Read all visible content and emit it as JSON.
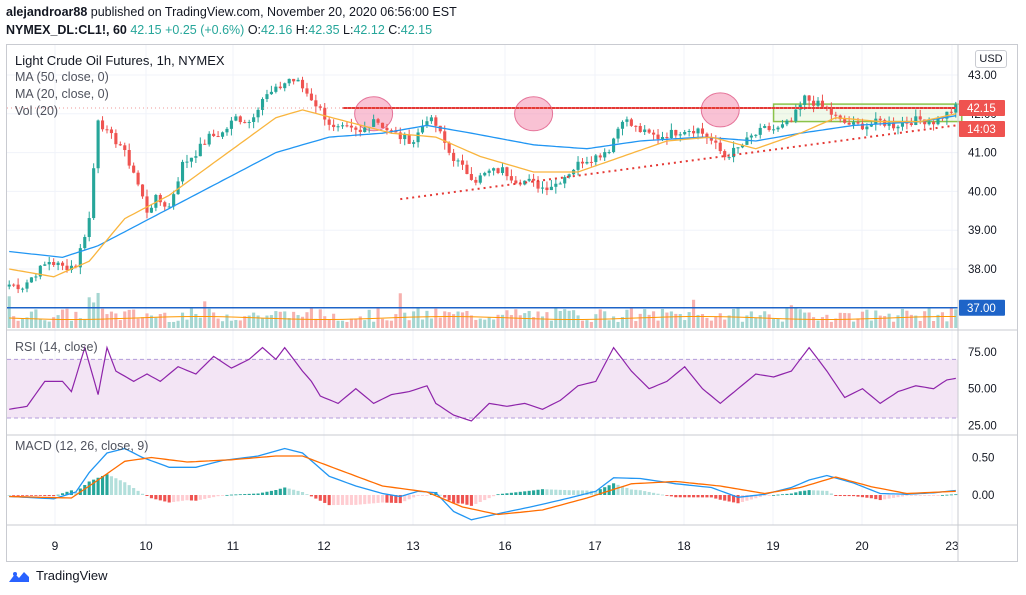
{
  "header": {
    "line1_user": "alejandroar88",
    "line1_rest": " published on TradingView.com, November 20, 2020 06:56:00 EST",
    "symbol": "NYMEX_DL:CL1!, 60",
    "last": "42.15",
    "change": "+0.25 (+0.6%)",
    "o_label": "O:",
    "o": "42.16",
    "h_label": "H:",
    "h": "42.35",
    "l_label": "L:",
    "l": "42.12",
    "c_label": "C:",
    "c": "42.15"
  },
  "legend": {
    "title": "Light Crude Oil Futures, 1h, NYMEX",
    "ma50": "MA (50, close, 0)",
    "ma20": "MA (20, close, 0)",
    "vol": "Vol (20)",
    "rsi": "RSI (14, close)",
    "macd": "MACD (12, 26, close, 9)"
  },
  "currency": "USD",
  "price_axis": {
    "ticks": [
      "43.00",
      "42.00",
      "41.00",
      "40.00",
      "39.00",
      "38.00"
    ],
    "last_label": "42.15",
    "countdown": "14:03",
    "level_label": "37.00"
  },
  "rsi_axis": {
    "ticks": [
      "75.00",
      "50.00",
      "25.00"
    ]
  },
  "macd_axis": {
    "ticks": [
      "0.50",
      "0.00"
    ]
  },
  "time_axis": {
    "ticks": [
      "9",
      "10",
      "11",
      "12",
      "13",
      "16",
      "17",
      "18",
      "19",
      "20",
      "23"
    ]
  },
  "footer": {
    "brand": "TradingView"
  },
  "colors": {
    "up": "#26a69a",
    "down": "#ef5350",
    "ma50": "#2196f3",
    "ma20": "#f9b53e",
    "rsi": "#8e24aa",
    "rsi_band": "#f3e5f5",
    "level": "#1e64c8",
    "resistance": "#e53935",
    "box": "#8bc34a",
    "circle": "#f48fb1"
  },
  "chart_data": [
    {
      "type": "candlestick",
      "title": "Light Crude Oil Futures, 1h, NYMEX",
      "x_ticks": [
        "9",
        "10",
        "11",
        "12",
        "13",
        "16",
        "17",
        "18",
        "19",
        "20",
        "23"
      ],
      "ylim": [
        37.0,
        43.3
      ],
      "y_ticks": [
        43,
        42,
        41,
        40,
        39,
        38
      ],
      "path_anchors": [
        [
          0,
          37.6
        ],
        [
          3,
          37.55
        ],
        [
          6,
          37.9
        ],
        [
          9,
          38.2
        ],
        [
          12,
          38.05
        ],
        [
          15,
          38.1
        ],
        [
          18,
          39.3
        ],
        [
          20,
          41.9
        ],
        [
          22,
          41.5
        ],
        [
          25,
          41.2
        ],
        [
          28,
          40.5
        ],
        [
          31,
          39.5
        ],
        [
          33,
          39.8
        ],
        [
          36,
          39.6
        ],
        [
          39,
          40.7
        ],
        [
          42,
          41.0
        ],
        [
          45,
          41.4
        ],
        [
          48,
          41.5
        ],
        [
          51,
          41.9
        ],
        [
          54,
          41.8
        ],
        [
          57,
          42.4
        ],
        [
          60,
          42.6
        ],
        [
          63,
          42.9
        ],
        [
          65,
          42.8
        ],
        [
          68,
          42.4
        ],
        [
          70,
          42.1
        ],
        [
          73,
          41.6
        ],
        [
          76,
          41.6
        ],
        [
          79,
          41.5
        ],
        [
          82,
          41.9
        ],
        [
          85,
          41.6
        ],
        [
          88,
          41.4
        ],
        [
          91,
          41.3
        ],
        [
          94,
          41.9
        ],
        [
          96,
          41.7
        ],
        [
          99,
          41.0
        ],
        [
          102,
          40.6
        ],
        [
          105,
          40.3
        ],
        [
          108,
          40.5
        ],
        [
          111,
          40.55
        ],
        [
          114,
          40.3
        ],
        [
          117,
          40.25
        ],
        [
          120,
          40.1
        ],
        [
          123,
          40.2
        ],
        [
          126,
          40.5
        ],
        [
          129,
          40.8
        ],
        [
          132,
          40.9
        ],
        [
          135,
          41.1
        ],
        [
          138,
          41.9
        ],
        [
          140,
          41.7
        ],
        [
          143,
          41.5
        ],
        [
          146,
          41.4
        ],
        [
          149,
          41.5
        ],
        [
          152,
          41.6
        ],
        [
          155,
          41.6
        ],
        [
          158,
          41.3
        ],
        [
          161,
          40.9
        ],
        [
          164,
          41.1
        ],
        [
          167,
          41.4
        ],
        [
          170,
          41.6
        ],
        [
          173,
          41.6
        ],
        [
          176,
          41.8
        ],
        [
          179,
          42.4
        ],
        [
          181,
          42.3
        ],
        [
          184,
          42.1
        ],
        [
          187,
          41.8
        ],
        [
          190,
          41.7
        ],
        [
          193,
          41.7
        ],
        [
          196,
          41.8
        ],
        [
          199,
          41.7
        ],
        [
          202,
          41.8
        ],
        [
          205,
          41.85
        ],
        [
          208,
          41.8
        ],
        [
          211,
          42.0
        ],
        [
          213,
          42.15
        ]
      ],
      "series": [
        {
          "name": "MA (50, close, 0)",
          "anchors": [
            [
              0,
              38.45
            ],
            [
              12,
              38.3
            ],
            [
              20,
              38.6
            ],
            [
              30,
              39.2
            ],
            [
              45,
              40.1
            ],
            [
              60,
              41.0
            ],
            [
              72,
              41.4
            ],
            [
              84,
              41.5
            ],
            [
              94,
              41.7
            ],
            [
              104,
              41.5
            ],
            [
              118,
              41.2
            ],
            [
              130,
              41.1
            ],
            [
              142,
              41.3
            ],
            [
              156,
              41.4
            ],
            [
              168,
              41.3
            ],
            [
              178,
              41.5
            ],
            [
              190,
              41.7
            ],
            [
              205,
              41.8
            ],
            [
              213,
              41.95
            ]
          ]
        },
        {
          "name": "MA (20, close, 0)",
          "anchors": [
            [
              0,
              38.0
            ],
            [
              10,
              37.8
            ],
            [
              18,
              38.2
            ],
            [
              26,
              39.3
            ],
            [
              36,
              39.9
            ],
            [
              48,
              40.9
            ],
            [
              60,
              41.9
            ],
            [
              66,
              42.1
            ],
            [
              76,
              41.8
            ],
            [
              86,
              41.5
            ],
            [
              96,
              41.4
            ],
            [
              106,
              40.9
            ],
            [
              118,
              40.5
            ],
            [
              128,
              40.5
            ],
            [
              138,
              40.9
            ],
            [
              148,
              41.3
            ],
            [
              158,
              41.4
            ],
            [
              168,
              41.1
            ],
            [
              178,
              41.5
            ],
            [
              186,
              41.9
            ],
            [
              196,
              41.8
            ],
            [
              205,
              41.8
            ],
            [
              213,
              42.0
            ]
          ]
        }
      ],
      "annotations": {
        "horizontal_level": 37.0,
        "resistance": [
          [
            75,
            42.15
          ],
          [
            213,
            42.15
          ]
        ],
        "rising_trendline": [
          [
            88,
            39.8
          ],
          [
            213,
            41.7
          ]
        ]
      }
    },
    {
      "type": "line",
      "title": "RSI (14, close)",
      "ylim": [
        22,
        82
      ],
      "y_ticks": [
        75,
        50,
        25
      ],
      "band": [
        30,
        70
      ],
      "anchors": [
        [
          0,
          36
        ],
        [
          4,
          38
        ],
        [
          8,
          55
        ],
        [
          12,
          55
        ],
        [
          14,
          48
        ],
        [
          17,
          78
        ],
        [
          20,
          46
        ],
        [
          22,
          78
        ],
        [
          24,
          62
        ],
        [
          28,
          55
        ],
        [
          31,
          60
        ],
        [
          34,
          55
        ],
        [
          38,
          65
        ],
        [
          42,
          60
        ],
        [
          46,
          72
        ],
        [
          50,
          64
        ],
        [
          54,
          70
        ],
        [
          57,
          78
        ],
        [
          60,
          70
        ],
        [
          62,
          78
        ],
        [
          64,
          70
        ],
        [
          66,
          62
        ],
        [
          68,
          55
        ],
        [
          70,
          45
        ],
        [
          74,
          40
        ],
        [
          78,
          50
        ],
        [
          82,
          40
        ],
        [
          86,
          46
        ],
        [
          90,
          48
        ],
        [
          94,
          52
        ],
        [
          96,
          40
        ],
        [
          100,
          32
        ],
        [
          104,
          28
        ],
        [
          108,
          40
        ],
        [
          112,
          38
        ],
        [
          116,
          40
        ],
        [
          120,
          36
        ],
        [
          124,
          42
        ],
        [
          128,
          52
        ],
        [
          132,
          55
        ],
        [
          136,
          78
        ],
        [
          140,
          62
        ],
        [
          144,
          50
        ],
        [
          148,
          55
        ],
        [
          152,
          65
        ],
        [
          156,
          50
        ],
        [
          160,
          40
        ],
        [
          164,
          50
        ],
        [
          168,
          60
        ],
        [
          172,
          58
        ],
        [
          176,
          62
        ],
        [
          180,
          78
        ],
        [
          184,
          62
        ],
        [
          188,
          44
        ],
        [
          192,
          50
        ],
        [
          196,
          40
        ],
        [
          200,
          48
        ],
        [
          204,
          52
        ],
        [
          208,
          50
        ],
        [
          211,
          56
        ],
        [
          213,
          57
        ]
      ]
    },
    {
      "type": "bar",
      "title": "MACD (12, 26, close, 9)",
      "ylim": [
        -0.38,
        0.68
      ],
      "y_ticks": [
        0.5,
        0.0
      ],
      "macd_anchors": [
        [
          0,
          -0.02
        ],
        [
          10,
          -0.05
        ],
        [
          15,
          0.04
        ],
        [
          18,
          0.3
        ],
        [
          22,
          0.56
        ],
        [
          26,
          0.62
        ],
        [
          30,
          0.5
        ],
        [
          36,
          0.37
        ],
        [
          42,
          0.37
        ],
        [
          48,
          0.46
        ],
        [
          56,
          0.52
        ],
        [
          62,
          0.62
        ],
        [
          66,
          0.56
        ],
        [
          72,
          0.25
        ],
        [
          78,
          0.12
        ],
        [
          84,
          0.02
        ],
        [
          88,
          -0.02
        ],
        [
          92,
          0.05
        ],
        [
          96,
          0.03
        ],
        [
          100,
          -0.22
        ],
        [
          104,
          -0.33
        ],
        [
          110,
          -0.25
        ],
        [
          118,
          -0.15
        ],
        [
          126,
          -0.04
        ],
        [
          132,
          0.05
        ],
        [
          136,
          0.23
        ],
        [
          142,
          0.22
        ],
        [
          150,
          0.15
        ],
        [
          158,
          0.1
        ],
        [
          164,
          -0.03
        ],
        [
          170,
          0.01
        ],
        [
          176,
          0.1
        ],
        [
          180,
          0.2
        ],
        [
          184,
          0.26
        ],
        [
          190,
          0.16
        ],
        [
          196,
          0.02
        ],
        [
          202,
          0.01
        ],
        [
          208,
          0.03
        ],
        [
          213,
          0.06
        ]
      ],
      "signal_anchors": [
        [
          0,
          -0.02
        ],
        [
          14,
          -0.04
        ],
        [
          20,
          0.2
        ],
        [
          26,
          0.45
        ],
        [
          32,
          0.5
        ],
        [
          40,
          0.44
        ],
        [
          50,
          0.47
        ],
        [
          60,
          0.52
        ],
        [
          66,
          0.52
        ],
        [
          74,
          0.34
        ],
        [
          84,
          0.12
        ],
        [
          94,
          0.04
        ],
        [
          102,
          -0.16
        ],
        [
          110,
          -0.26
        ],
        [
          120,
          -0.2
        ],
        [
          130,
          -0.04
        ],
        [
          140,
          0.15
        ],
        [
          150,
          0.18
        ],
        [
          160,
          0.12
        ],
        [
          170,
          0.02
        ],
        [
          178,
          0.1
        ],
        [
          186,
          0.24
        ],
        [
          194,
          0.11
        ],
        [
          202,
          0.02
        ],
        [
          213,
          0.05
        ]
      ]
    }
  ]
}
